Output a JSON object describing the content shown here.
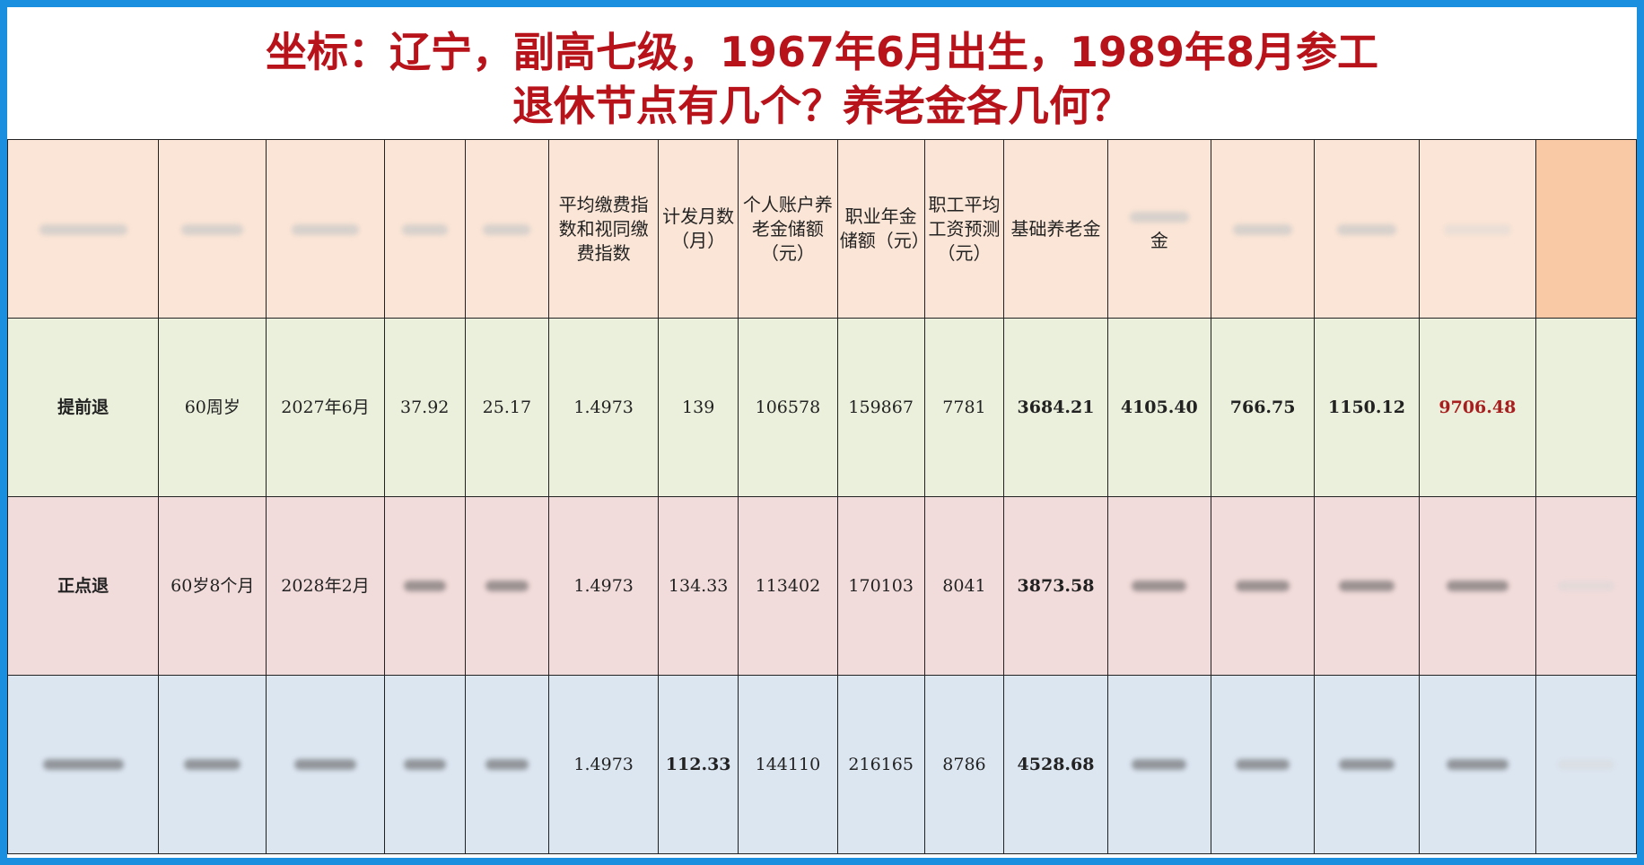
{
  "title": {
    "line1": "坐标：辽宁，副高七级，1967年6月出生，1989年8月参工",
    "line2": "退休节点有几个？养老金各几何？"
  },
  "table": {
    "headers": {
      "avg_index": "平均缴费指数和视同缴费指数",
      "months": "计发月数（月）",
      "personal_account": "个人账户养老金储额（元）",
      "occupational": "职业年金储额（元）",
      "avg_wage": "职工平均工资预测（元）",
      "basic_pension": "基础养老金",
      "col12_partial": "金"
    },
    "rows": [
      {
        "type": "提前退",
        "age": "60周岁",
        "date": "2027年6月",
        "c4": "37.92",
        "c5": "25.17",
        "avg_index": "1.4973",
        "months": "139",
        "personal_account": "106578",
        "occupational": "159867",
        "avg_wage": "7781",
        "basic_pension": "3684.21",
        "c12": "4105.40",
        "c13": "766.75",
        "c14": "1150.12",
        "total": "9706.48"
      },
      {
        "type": "正点退",
        "age": "60岁8个月",
        "date": "2028年2月",
        "avg_index": "1.4973",
        "months": "134.33",
        "personal_account": "113402",
        "occupational": "170103",
        "avg_wage": "8041",
        "basic_pension": "3873.58"
      },
      {
        "avg_index": "1.4973",
        "months": "112.33",
        "personal_account": "144110",
        "occupational": "216165",
        "avg_wage": "8786",
        "basic_pension": "4528.68"
      }
    ]
  }
}
